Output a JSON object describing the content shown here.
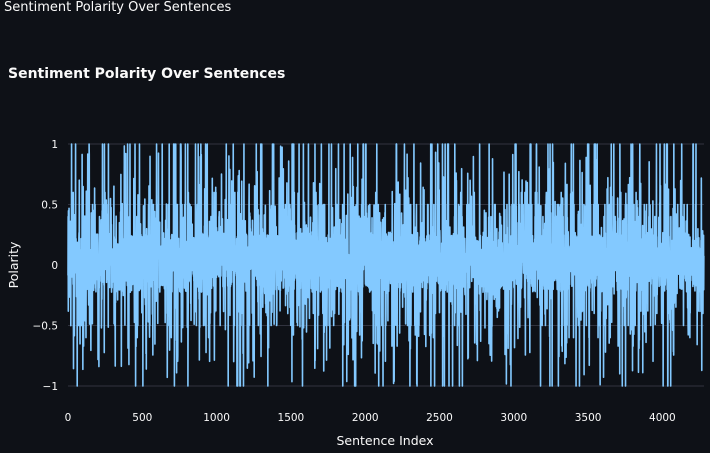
{
  "page": {
    "header_title": "Sentiment Polarity Over Sentences"
  },
  "chart_data": {
    "type": "line",
    "title": "Sentiment Polarity Over Sentences",
    "xlabel": "Sentence Index",
    "ylabel": "Polarity",
    "xlim": [
      0,
      4280
    ],
    "ylim": [
      -1,
      1
    ],
    "x_ticks": [
      0,
      500,
      1000,
      1500,
      2000,
      2500,
      3000,
      3500,
      4000
    ],
    "x_tick_labels": [
      "0",
      "500",
      "1000",
      "1500",
      "2000",
      "2500",
      "3000",
      "3500",
      "4000"
    ],
    "y_ticks": [
      -1,
      -0.5,
      0,
      0.5,
      1
    ],
    "y_tick_labels": [
      "−1",
      "−0.5",
      "0",
      "0.5",
      "1"
    ],
    "grid": true,
    "line_color": "#83c9ff",
    "background_color": "#0e1117",
    "grid_color": "#31333f",
    "series": [
      {
        "n_points": 4280,
        "values_sample": [
          0.6,
          -0.67,
          0.3,
          1,
          -0.5,
          0.5,
          -1,
          0.25,
          1,
          -0.4,
          0.5,
          1,
          1,
          -0.6,
          0.4,
          0.5,
          -1,
          0.3,
          1,
          -0.5,
          0.5,
          1,
          -1,
          0.35,
          0.5,
          -0.5,
          1,
          -1,
          0.4,
          0.5,
          -0.5,
          1,
          0.6,
          -1,
          0.5,
          0.4,
          1,
          -0.5,
          0.5,
          1,
          -0.5,
          0.4,
          -1,
          0.6,
          0.5,
          -0.5,
          1,
          0.4,
          -0.6,
          0.5,
          1,
          -0.5,
          0.4,
          -1,
          0.6,
          0.5,
          -0.4,
          1,
          0.5,
          -0.5,
          0.2
        ]
      }
    ]
  }
}
